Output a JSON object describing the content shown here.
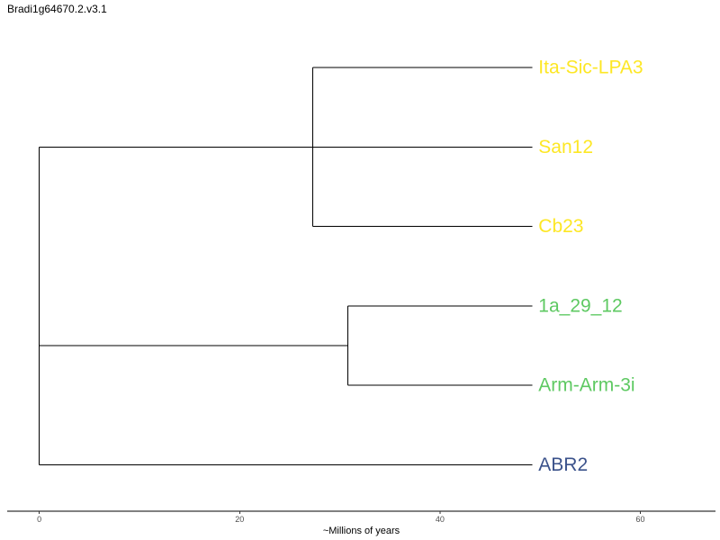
{
  "chart_data": {
    "type": "dendrogram",
    "title": "Bradi1g64670.2.v3.1",
    "xlabel": "~Millions of years",
    "xlim": [
      -3.2,
      67.5
    ],
    "xticks": [
      0,
      20,
      40,
      60
    ],
    "grid": false,
    "leaves": [
      {
        "name": "Ita-Sic-LPA3",
        "color": "#fde725"
      },
      {
        "name": "San12",
        "color": "#fde725"
      },
      {
        "name": "Cb23",
        "color": "#fde725"
      },
      {
        "name": "1a_29_12",
        "color": "#5ec962"
      },
      {
        "name": "Arm-Arm-3i",
        "color": "#5ec962"
      },
      {
        "name": "ABR2",
        "color": "#3b528b"
      }
    ],
    "tip_x": 49.2,
    "nodes": [
      {
        "id": "n_yellow",
        "x": 27.3,
        "children": [
          "Ita-Sic-LPA3",
          "Cb23"
        ]
      },
      {
        "id": "n_green",
        "x": 30.8,
        "children": [
          "1a_29_12",
          "Arm-Arm-3i"
        ]
      },
      {
        "id": "n_root",
        "x": 0,
        "children": [
          "San12",
          "n_green",
          "ABR2"
        ]
      }
    ],
    "root_stub": {
      "from_leaf": "San12"
    },
    "stroke_color": "#000000"
  }
}
